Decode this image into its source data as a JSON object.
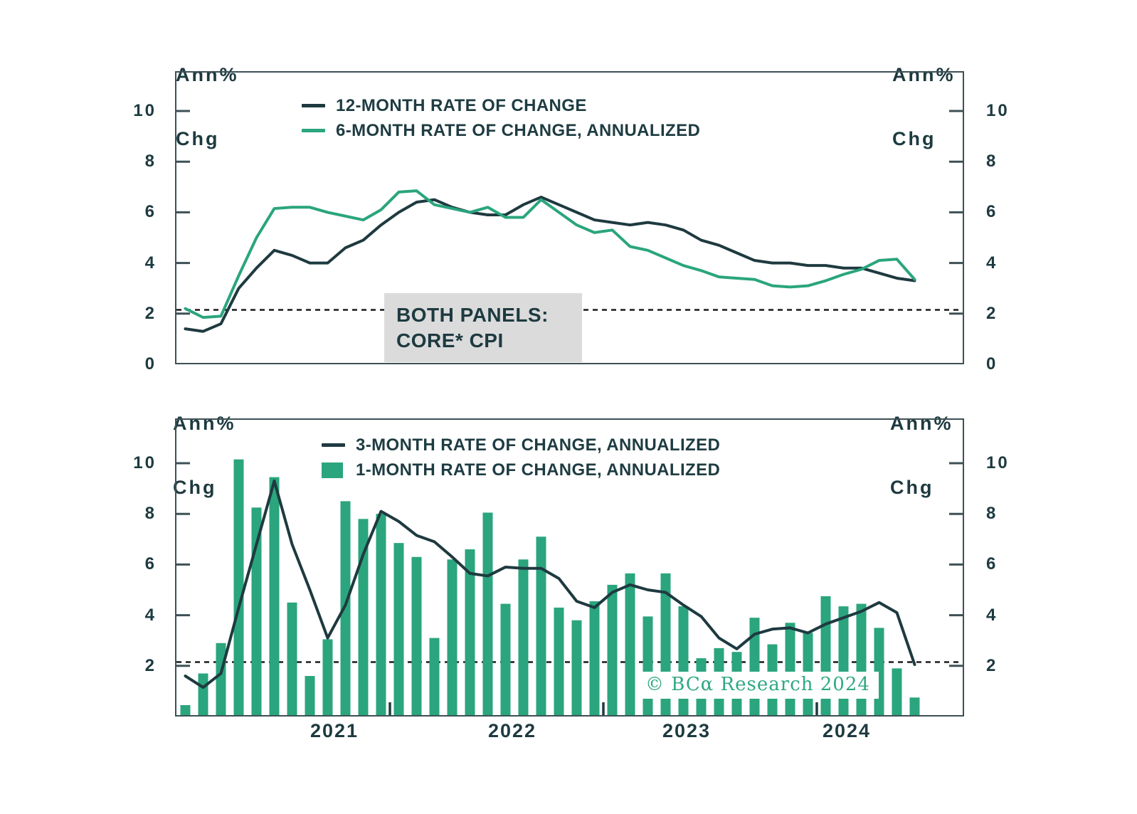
{
  "axis_unit_label": {
    "line1": "Ann%",
    "line2": "Chg"
  },
  "note_box": {
    "line1": "BOTH PANELS:",
    "line2": "CORE* CPI"
  },
  "watermark": {
    "text": "© BCα Research 2024",
    "color": "#2fa884"
  },
  "colors": {
    "dark_line": "#1e3a40",
    "green_line": "#2aa57d",
    "bar_fill": "#2aa57d",
    "axis": "#3d5055",
    "text": "#1d3a40",
    "dashed_reference": "#1b1b1b",
    "note_box_bg": "#dbdbdc"
  },
  "x_axis": {
    "year_labels": [
      "2021",
      "2022",
      "2023",
      "2024"
    ]
  },
  "chart_data": [
    {
      "type": "line",
      "panel": "top",
      "ylabel_left": "Ann% Chg",
      "ylabel_right": "Ann% Chg",
      "ylim": [
        0,
        11.6
      ],
      "yticks": [
        0,
        2,
        4,
        6,
        8,
        10
      ],
      "reference_line_dashed": 2.15,
      "grid": false,
      "legend_position": "top-inside",
      "months": [
        "2021-01",
        "2021-02",
        "2021-03",
        "2021-04",
        "2021-05",
        "2021-06",
        "2021-07",
        "2021-08",
        "2021-09",
        "2021-10",
        "2021-11",
        "2021-12",
        "2022-01",
        "2022-02",
        "2022-03",
        "2022-04",
        "2022-05",
        "2022-06",
        "2022-07",
        "2022-08",
        "2022-09",
        "2022-10",
        "2022-11",
        "2022-12",
        "2023-01",
        "2023-02",
        "2023-03",
        "2023-04",
        "2023-05",
        "2023-06",
        "2023-07",
        "2023-08",
        "2023-09",
        "2023-10",
        "2023-11",
        "2023-12",
        "2024-01",
        "2024-02",
        "2024-03",
        "2024-04",
        "2024-05",
        "2024-06"
      ],
      "series": [
        {
          "name": "12-MONTH RATE OF CHANGE",
          "type": "line",
          "color": "#1e3a40",
          "values": [
            1.4,
            1.3,
            1.6,
            3.0,
            3.8,
            4.5,
            4.3,
            4.0,
            4.0,
            4.6,
            4.9,
            5.5,
            6.0,
            6.4,
            6.5,
            6.2,
            6.0,
            5.9,
            5.9,
            6.3,
            6.6,
            6.3,
            6.0,
            5.7,
            5.6,
            5.5,
            5.6,
            5.5,
            5.3,
            4.9,
            4.7,
            4.4,
            4.1,
            4.0,
            4.0,
            3.9,
            3.9,
            3.8,
            3.8,
            3.6,
            3.4,
            3.3
          ]
        },
        {
          "name": "6-MONTH RATE OF CHANGE, ANNUALIZED",
          "type": "line",
          "color": "#2aa57d",
          "values": [
            2.2,
            1.85,
            1.9,
            3.5,
            5.0,
            6.15,
            6.2,
            6.2,
            6.0,
            5.85,
            5.7,
            6.1,
            6.8,
            6.85,
            6.3,
            6.15,
            6.0,
            6.2,
            5.8,
            5.8,
            6.5,
            6.0,
            5.5,
            5.2,
            5.3,
            4.65,
            4.5,
            4.2,
            3.9,
            3.7,
            3.45,
            3.4,
            3.35,
            3.1,
            3.05,
            3.1,
            3.3,
            3.55,
            3.75,
            4.1,
            4.15,
            3.35
          ]
        }
      ]
    },
    {
      "type": "bar",
      "panel": "bottom",
      "ylabel_left": "Ann% Chg",
      "ylabel_right": "Ann% Chg",
      "ylim": [
        0,
        11.8
      ],
      "yticks": [
        2,
        4,
        6,
        8,
        10
      ],
      "reference_line_dashed": 2.15,
      "grid": false,
      "legend_position": "top-inside",
      "x_year_ticks": [
        "2022-01",
        "2023-01",
        "2024-01"
      ],
      "months": [
        "2021-01",
        "2021-02",
        "2021-03",
        "2021-04",
        "2021-05",
        "2021-06",
        "2021-07",
        "2021-08",
        "2021-09",
        "2021-10",
        "2021-11",
        "2021-12",
        "2022-01",
        "2022-02",
        "2022-03",
        "2022-04",
        "2022-05",
        "2022-06",
        "2022-07",
        "2022-08",
        "2022-09",
        "2022-10",
        "2022-11",
        "2022-12",
        "2023-01",
        "2023-02",
        "2023-03",
        "2023-04",
        "2023-05",
        "2023-06",
        "2023-07",
        "2023-08",
        "2023-09",
        "2023-10",
        "2023-11",
        "2023-12",
        "2024-01",
        "2024-02",
        "2024-03",
        "2024-04",
        "2024-05",
        "2024-06"
      ],
      "series": [
        {
          "name": "3-MONTH RATE OF CHANGE, ANNUALIZED",
          "type": "line",
          "color": "#1e3a40",
          "values": [
            1.6,
            1.15,
            1.7,
            4.3,
            6.8,
            9.3,
            6.8,
            5.0,
            3.1,
            4.4,
            6.4,
            8.1,
            7.7,
            7.15,
            6.9,
            6.3,
            5.65,
            5.55,
            5.9,
            5.85,
            5.85,
            5.45,
            4.55,
            4.3,
            4.9,
            5.2,
            5.0,
            4.9,
            4.4,
            3.95,
            3.1,
            2.67,
            3.25,
            3.45,
            3.5,
            3.3,
            3.65,
            3.9,
            4.15,
            4.5,
            4.1,
            2.05
          ]
        },
        {
          "name": "1-MONTH RATE OF CHANGE, ANNUALIZED",
          "type": "bar",
          "color": "#2aa57d",
          "values": [
            0.45,
            1.7,
            2.9,
            10.15,
            8.25,
            9.45,
            4.5,
            1.6,
            3.05,
            8.5,
            7.8,
            8.0,
            6.85,
            6.3,
            3.1,
            6.2,
            6.6,
            8.05,
            4.45,
            6.2,
            7.1,
            4.3,
            3.8,
            4.55,
            5.2,
            5.65,
            3.95,
            5.65,
            4.35,
            2.3,
            2.7,
            2.55,
            3.9,
            2.85,
            3.7,
            3.3,
            4.75,
            4.35,
            4.45,
            3.5,
            1.9,
            0.75
          ]
        }
      ]
    }
  ]
}
